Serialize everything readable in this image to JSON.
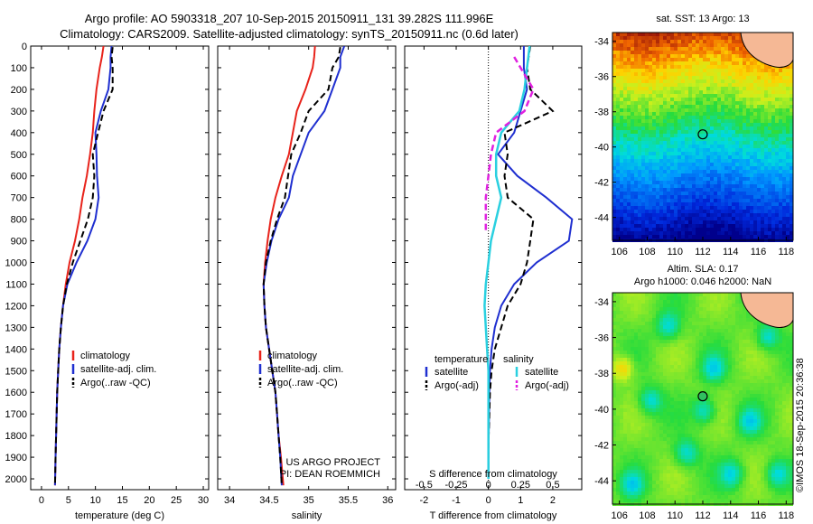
{
  "title_line1": "Argo profile: AO 5903318_207 10-Sep-2015 20150911_131 39.282S 111.996E",
  "title_line2": "Climatology: CARS2009. Satellite-adjusted climatology: synTS_20150911.nc (0.6d later)",
  "stamp": "©IMOS 18-Sep-2015 20:36:38",
  "colors": {
    "climatology": "#e8231b",
    "satellite": "#1f2fd0",
    "argo": "#000000",
    "sal_satellite": "#2ad0e0",
    "sal_argo": "#e020e0",
    "land": "#f5b895"
  },
  "chart_data": [
    {
      "type": "line",
      "xlabel": "temperature (deg C)",
      "xlim": [
        -2,
        31
      ],
      "xticks": [
        "0",
        "5",
        "10",
        "15",
        "20",
        "25",
        "30"
      ],
      "ylim": [
        2050,
        0
      ],
      "yticks": [
        "0",
        "100",
        "200",
        "300",
        "400",
        "500",
        "600",
        "700",
        "800",
        "900",
        "1000",
        "1100",
        "1200",
        "1300",
        "1400",
        "1500",
        "1600",
        "1700",
        "1800",
        "1900",
        "2000"
      ],
      "legend": [
        "climatology",
        "satellite-adj. clim.",
        "Argo(..raw -QC)"
      ],
      "series": [
        {
          "name": "climatology",
          "x": [
            11.5,
            11.2,
            10.8,
            10.2,
            9.8,
            9.5,
            9.0,
            8.4,
            7.6,
            7.0,
            6.2,
            5.2,
            4.5,
            4.0,
            3.6,
            3.3,
            3.1,
            2.9,
            2.8,
            2.7,
            2.6,
            2.5
          ],
          "y": [
            0,
            50,
            100,
            200,
            300,
            400,
            500,
            600,
            700,
            800,
            900,
            1000,
            1100,
            1200,
            1300,
            1400,
            1500,
            1600,
            1700,
            1800,
            1900,
            2030
          ]
        },
        {
          "name": "satellite-adj. clim.",
          "x": [
            13.0,
            12.8,
            12.8,
            12.4,
            11.0,
            10.0,
            10.2,
            10.3,
            10.6,
            10.0,
            8.5,
            6.5,
            4.8,
            4.0,
            3.6,
            3.3,
            3.1,
            2.9,
            2.8,
            2.7,
            2.6,
            2.5
          ],
          "y": [
            0,
            50,
            100,
            200,
            300,
            400,
            500,
            600,
            700,
            800,
            900,
            1000,
            1100,
            1200,
            1300,
            1400,
            1500,
            1600,
            1700,
            1800,
            1900,
            2030
          ]
        },
        {
          "name": "Argo(..raw -QC)",
          "x": [
            13.2,
            13.0,
            13.2,
            13.2,
            11.5,
            10.5,
            9.5,
            9.8,
            9.5,
            8.6,
            7.2,
            5.8,
            4.7,
            4.0,
            3.6,
            3.3,
            3.1,
            2.9,
            2.8,
            2.7,
            2.6,
            2.5
          ],
          "y": [
            5,
            50,
            100,
            200,
            300,
            400,
            500,
            600,
            700,
            800,
            900,
            1000,
            1100,
            1200,
            1300,
            1400,
            1500,
            1600,
            1700,
            1800,
            1900,
            2030
          ]
        }
      ]
    },
    {
      "type": "line",
      "xlabel": "salinity",
      "xlim": [
        33.85,
        36.1
      ],
      "xticks": [
        "34",
        "34.5",
        "35",
        "35.5",
        "36"
      ],
      "ylim": [
        2050,
        0
      ],
      "legend": [
        "climatology",
        "satellite-adj. clim.",
        "Argo(..raw -QC)"
      ],
      "annotation": [
        "US ARGO PROJECT",
        "PI: DEAN ROEMMICH"
      ],
      "series": [
        {
          "name": "climatology",
          "x": [
            35.08,
            35.07,
            35.05,
            34.96,
            34.85,
            34.8,
            34.75,
            34.66,
            34.58,
            34.52,
            34.48,
            34.45,
            34.43,
            34.44,
            34.46,
            34.5,
            34.54,
            34.58,
            34.6,
            34.62,
            34.65,
            34.68
          ],
          "y": [
            0,
            50,
            100,
            200,
            300,
            400,
            500,
            600,
            700,
            800,
            900,
            1000,
            1100,
            1200,
            1300,
            1400,
            1500,
            1600,
            1700,
            1800,
            1900,
            2030
          ]
        },
        {
          "name": "satellite-adj. clim.",
          "x": [
            35.45,
            35.4,
            35.4,
            35.3,
            35.2,
            35.0,
            34.9,
            34.8,
            34.75,
            34.62,
            34.53,
            34.47,
            34.43,
            34.44,
            34.46,
            34.5,
            34.54,
            34.58,
            34.6,
            34.62,
            34.64,
            34.66
          ],
          "y": [
            0,
            50,
            100,
            200,
            300,
            400,
            500,
            600,
            700,
            800,
            900,
            1000,
            1100,
            1200,
            1300,
            1400,
            1500,
            1600,
            1700,
            1800,
            1900,
            2030
          ]
        },
        {
          "name": "Argo(..raw -QC)",
          "x": [
            35.4,
            35.38,
            35.3,
            35.25,
            35.0,
            34.9,
            34.78,
            34.74,
            34.7,
            34.6,
            34.52,
            34.46,
            34.43,
            34.44,
            34.46,
            34.5,
            34.54,
            34.58,
            34.6,
            34.62,
            34.64,
            34.66
          ],
          "y": [
            5,
            50,
            100,
            200,
            300,
            400,
            500,
            600,
            700,
            800,
            900,
            1000,
            1100,
            1200,
            1300,
            1400,
            1500,
            1600,
            1700,
            1800,
            1900,
            2030
          ]
        }
      ]
    },
    {
      "type": "line",
      "xlabel": "T difference from climatology",
      "xlabel_top": "S difference from climatology",
      "xlim": [
        -2.6,
        2.9
      ],
      "xticks": [
        "-2",
        "-1",
        "0",
        "1",
        "2"
      ],
      "top_ticks": [
        "-0.5",
        "-0.25",
        "0",
        "0.25",
        "0.5"
      ],
      "ylim": [
        2050,
        0
      ],
      "legend_headers": [
        "temperature",
        "salinity"
      ],
      "legend": [
        "satellite",
        "Argo(-adj)",
        "satellite",
        "Argo(-adj)"
      ],
      "series": [
        {
          "name": "satellite",
          "x": [
            1.1,
            1.1,
            1.2,
            1.0,
            0.8,
            0.3,
            0.9,
            1.8,
            2.6,
            2.5,
            1.5,
            0.8,
            0.4,
            0.2,
            0.1,
            0.05,
            0.03,
            0.02,
            0.01,
            0.0,
            0.0
          ],
          "y": [
            0,
            100,
            200,
            300,
            400,
            500,
            600,
            700,
            800,
            900,
            1000,
            1100,
            1200,
            1300,
            1400,
            1500,
            1600,
            1700,
            1800,
            1900,
            2000
          ]
        },
        {
          "name": "Argo(-adj)",
          "x": [
            1.3,
            1.2,
            1.3,
            2.0,
            0.5,
            0.6,
            0.5,
            0.6,
            1.4,
            1.3,
            1.2,
            1.0,
            0.6,
            0.4,
            0.2,
            0.1,
            0.05,
            0.03,
            0.01,
            0.0,
            0.0
          ],
          "y": [
            0,
            100,
            200,
            300,
            400,
            500,
            600,
            700,
            800,
            900,
            1000,
            1100,
            1200,
            1300,
            1400,
            1500,
            1600,
            1700,
            1800,
            1900,
            2000
          ]
        },
        {
          "name": "satellite",
          "x": [
            0.32,
            0.3,
            0.28,
            0.24,
            0.1,
            0.06,
            0.06,
            0.1,
            0.06,
            0.02,
            0.0,
            -0.02,
            -0.03,
            -0.02,
            -0.01,
            0.0,
            0.0,
            0.0,
            0.0,
            0.0,
            0.0
          ],
          "y": [
            0,
            100,
            200,
            300,
            400,
            500,
            600,
            700,
            800,
            900,
            1000,
            1100,
            1200,
            1300,
            1400,
            1500,
            1600,
            1700,
            1800,
            1900,
            2000
          ]
        },
        {
          "name": "Argo(-adj)",
          "x": [
            0.2,
            0.25,
            0.35,
            0.28,
            0.06,
            0.02,
            0.0,
            -0.02,
            -0.02,
            -0.02
          ],
          "y": [
            50,
            100,
            200,
            300,
            400,
            500,
            600,
            700,
            800,
            850
          ]
        }
      ]
    },
    {
      "type": "heatmap",
      "title": "sat. SST: 13 Argo: 13",
      "xticks": [
        "106",
        "108",
        "110",
        "112",
        "114",
        "116",
        "118"
      ],
      "yticks": [
        "-34",
        "-36",
        "-38",
        "-40",
        "-42",
        "-44"
      ],
      "xlim": [
        105.5,
        118.5
      ],
      "ylim": [
        -45.3,
        -33.5
      ],
      "marker": {
        "lon": 111.996,
        "lat": -39.282
      }
    },
    {
      "type": "heatmap",
      "title": "Altim. SLA: 0.17",
      "subtitle": "Argo h1000: 0.046 h2000: NaN",
      "xticks": [
        "106",
        "108",
        "110",
        "112",
        "114",
        "116",
        "118"
      ],
      "yticks": [
        "-34",
        "-36",
        "-38",
        "-40",
        "-42",
        "-44"
      ],
      "xlim": [
        105.5,
        118.5
      ],
      "ylim": [
        -45.3,
        -33.5
      ],
      "marker": {
        "lon": 111.996,
        "lat": -39.282
      }
    }
  ]
}
